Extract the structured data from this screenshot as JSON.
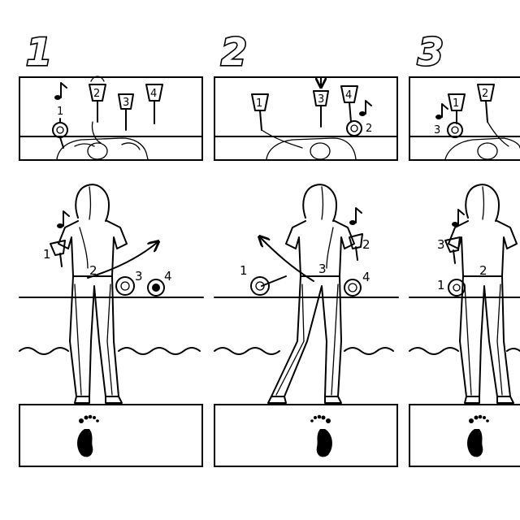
{
  "panels": [
    {
      "step": "1",
      "table_bells": [
        "1",
        "2",
        "3",
        "4"
      ],
      "person_labels": [
        "1",
        "2",
        "3",
        "4"
      ],
      "foot": "left"
    },
    {
      "step": "2",
      "table_bells": [
        "1",
        "3",
        "4",
        "2"
      ],
      "person_labels": [
        "1",
        "2",
        "3",
        "4"
      ],
      "foot": "right"
    },
    {
      "step": "3",
      "table_bells": [
        "1",
        "2",
        "3"
      ],
      "person_labels": [
        "1",
        "2",
        "3"
      ],
      "foot": "left"
    }
  ],
  "icons": {
    "note": "music-note-icon",
    "foot": "footprint-icon",
    "arrow": "direction-arrow-icon"
  }
}
